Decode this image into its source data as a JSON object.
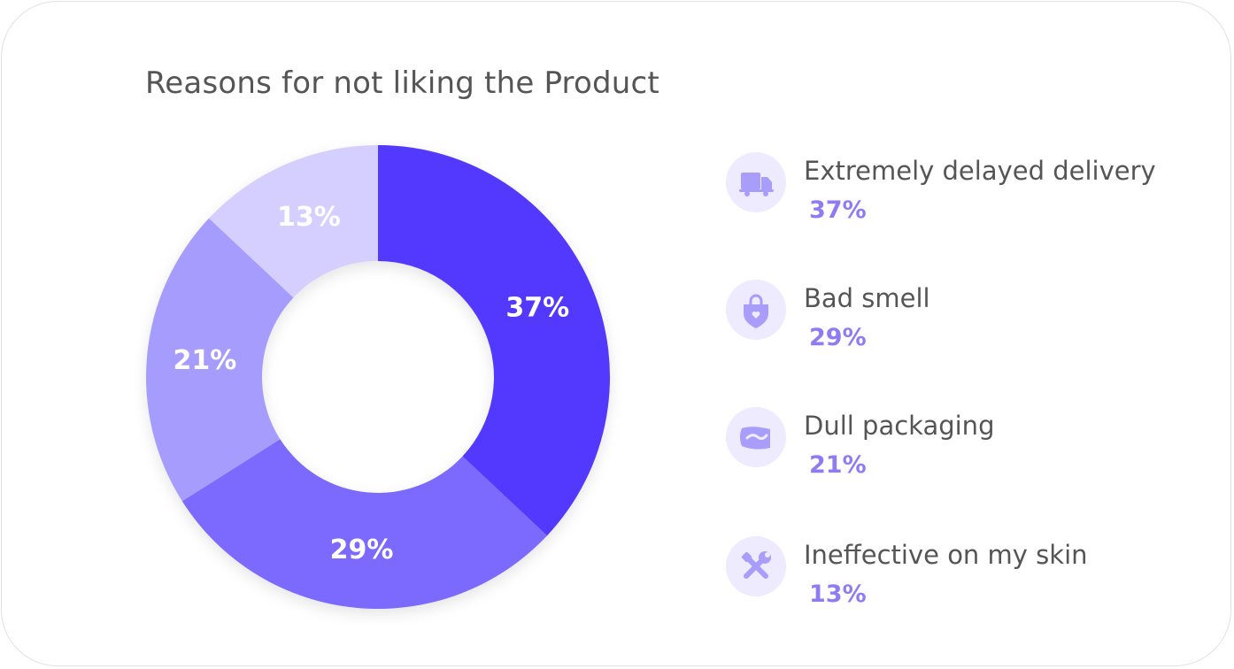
{
  "chart_data": {
    "type": "pie",
    "title": "Reasons for not liking the Product",
    "categories": [
      "Extremely delayed delivery",
      "Bad smell",
      "Dull packaging",
      "Ineffective on my skin"
    ],
    "values": [
      37,
      29,
      21,
      13
    ],
    "value_labels": [
      "37%",
      "29%",
      "21%",
      "13%"
    ],
    "unit": "%",
    "donut": true,
    "legend_position": "right",
    "colors": [
      "#5237fd",
      "#7b69fe",
      "#a59cfe",
      "#d4cfff"
    ]
  },
  "legend": {
    "items": [
      {
        "label": "Extremely delayed delivery",
        "value": "37%",
        "icon": "truck-icon"
      },
      {
        "label": "Bad smell",
        "value": "29%",
        "icon": "heart-bag-icon"
      },
      {
        "label": "Dull packaging",
        "value": "21%",
        "icon": "package-icon"
      },
      {
        "label": "Ineffective on my skin",
        "value": "13%",
        "icon": "tools-icon"
      }
    ]
  },
  "theme": {
    "icon_bg": "#eeeaff",
    "icon_color": "#a89dfb",
    "value_color": "#8f7cf2",
    "text_color": "#555555"
  }
}
